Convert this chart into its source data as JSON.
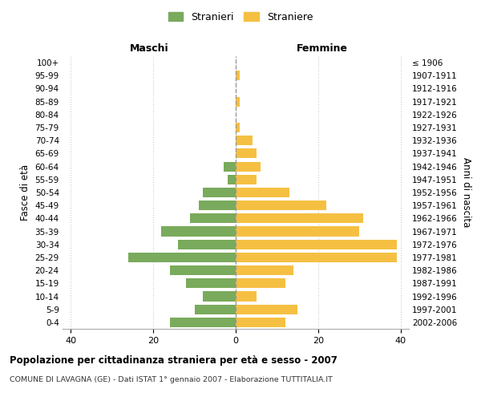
{
  "age_groups": [
    "0-4",
    "5-9",
    "10-14",
    "15-19",
    "20-24",
    "25-29",
    "30-34",
    "35-39",
    "40-44",
    "45-49",
    "50-54",
    "55-59",
    "60-64",
    "65-69",
    "70-74",
    "75-79",
    "80-84",
    "85-89",
    "90-94",
    "95-99",
    "100+"
  ],
  "birth_years": [
    "2002-2006",
    "1997-2001",
    "1992-1996",
    "1987-1991",
    "1982-1986",
    "1977-1981",
    "1972-1976",
    "1967-1971",
    "1962-1966",
    "1957-1961",
    "1952-1956",
    "1947-1951",
    "1942-1946",
    "1937-1941",
    "1932-1936",
    "1927-1931",
    "1922-1926",
    "1917-1921",
    "1912-1916",
    "1907-1911",
    "≤ 1906"
  ],
  "males": [
    16,
    10,
    8,
    12,
    16,
    26,
    14,
    18,
    11,
    9,
    8,
    2,
    3,
    0,
    0,
    0,
    0,
    0,
    0,
    0,
    0
  ],
  "females": [
    12,
    15,
    5,
    12,
    14,
    39,
    39,
    30,
    31,
    22,
    13,
    5,
    6,
    5,
    4,
    1,
    0,
    1,
    0,
    1,
    0
  ],
  "male_color": "#7aaa5c",
  "female_color": "#f5c042",
  "title": "Popolazione per cittadinanza straniera per età e sesso - 2007",
  "subtitle": "COMUNE DI LAVAGNA (GE) - Dati ISTAT 1° gennaio 2007 - Elaborazione TUTTITALIA.IT",
  "xlabel_left": "Maschi",
  "xlabel_right": "Femmine",
  "ylabel_left": "Fasce di età",
  "ylabel_right": "Anni di nascita",
  "legend_male": "Stranieri",
  "legend_female": "Straniere",
  "xlim": 42,
  "background_color": "#ffffff",
  "grid_color": "#cccccc"
}
